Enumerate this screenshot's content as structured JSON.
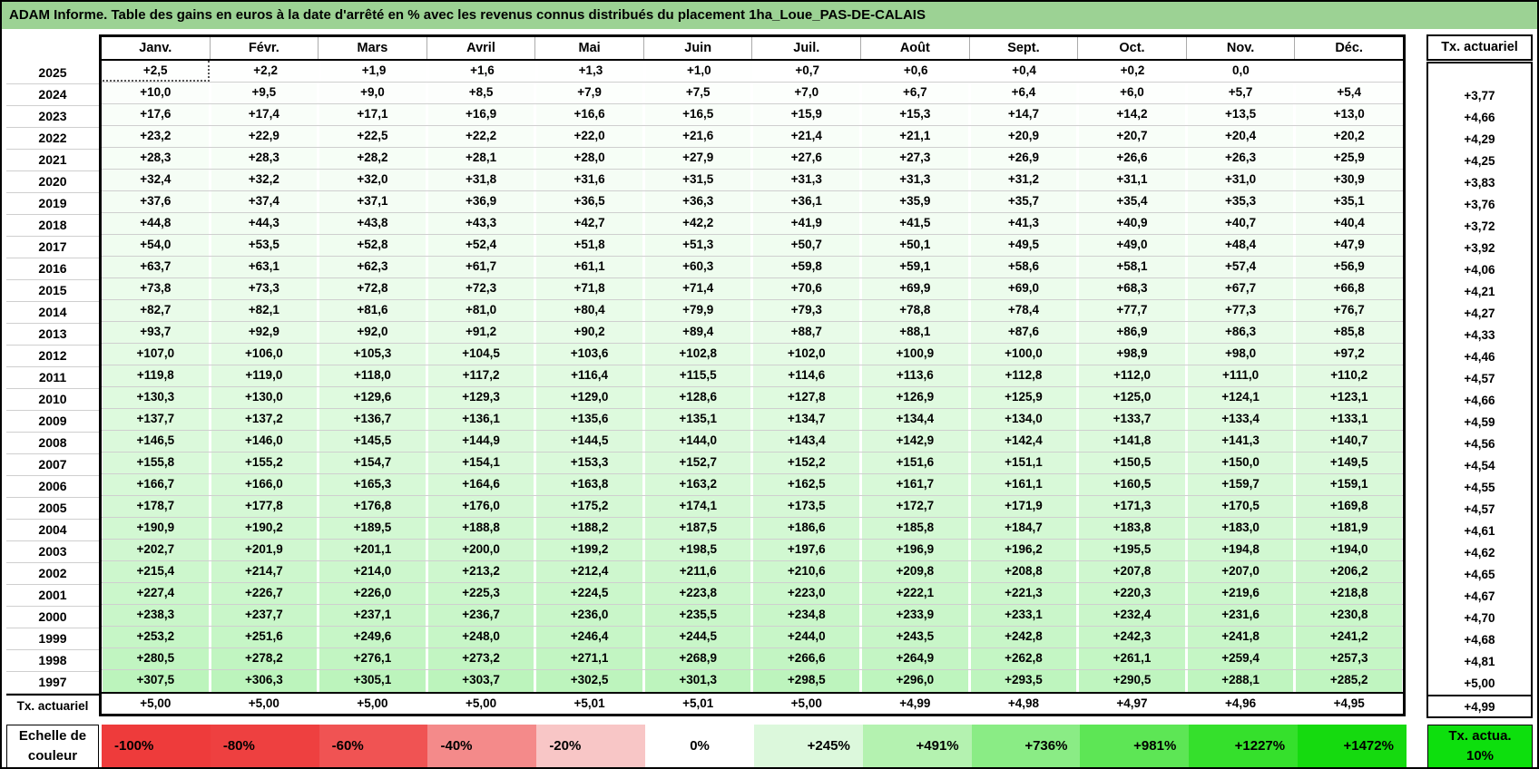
{
  "title": "ADAM Informe. Table des gains en euros à la date d'arrêté en % avec les revenus connus distribués du placement 1ha_Loue_PAS-DE-CALAIS",
  "colors": {
    "title_bg": "#9cd294",
    "grid_line": "#cfcfcf",
    "gain_full_green": "#00d600",
    "selection_dots": "#555555"
  },
  "table": {
    "month_headers": [
      "Janv.",
      "Févr.",
      "Mars",
      "Avril",
      "Mai",
      "Juin",
      "Juil.",
      "Août",
      "Sept.",
      "Oct.",
      "Nov.",
      "Déc."
    ],
    "tx_column_header": "Tx. actuariel",
    "tx_row_label": "Tx. actuariel",
    "selected_cell": {
      "year": "2025",
      "month": "Janv."
    },
    "rows": [
      {
        "year": "2025",
        "values": [
          "+2,5",
          "+2,2",
          "+1,9",
          "+1,6",
          "+1,3",
          "+1,0",
          "+0,7",
          "+0,6",
          "+0,4",
          "+0,2",
          "0,0",
          ""
        ],
        "tx": ""
      },
      {
        "year": "2024",
        "values": [
          "+10,0",
          "+9,5",
          "+9,0",
          "+8,5",
          "+7,9",
          "+7,5",
          "+7,0",
          "+6,7",
          "+6,4",
          "+6,0",
          "+5,7",
          "+5,4"
        ],
        "tx": "+3,77"
      },
      {
        "year": "2023",
        "values": [
          "+17,6",
          "+17,4",
          "+17,1",
          "+16,9",
          "+16,6",
          "+16,5",
          "+15,9",
          "+15,3",
          "+14,7",
          "+14,2",
          "+13,5",
          "+13,0"
        ],
        "tx": "+4,66"
      },
      {
        "year": "2022",
        "values": [
          "+23,2",
          "+22,9",
          "+22,5",
          "+22,2",
          "+22,0",
          "+21,6",
          "+21,4",
          "+21,1",
          "+20,9",
          "+20,7",
          "+20,4",
          "+20,2"
        ],
        "tx": "+4,29"
      },
      {
        "year": "2021",
        "values": [
          "+28,3",
          "+28,3",
          "+28,2",
          "+28,1",
          "+28,0",
          "+27,9",
          "+27,6",
          "+27,3",
          "+26,9",
          "+26,6",
          "+26,3",
          "+25,9"
        ],
        "tx": "+4,25"
      },
      {
        "year": "2020",
        "values": [
          "+32,4",
          "+32,2",
          "+32,0",
          "+31,8",
          "+31,6",
          "+31,5",
          "+31,3",
          "+31,3",
          "+31,2",
          "+31,1",
          "+31,0",
          "+30,9"
        ],
        "tx": "+3,83"
      },
      {
        "year": "2019",
        "values": [
          "+37,6",
          "+37,4",
          "+37,1",
          "+36,9",
          "+36,5",
          "+36,3",
          "+36,1",
          "+35,9",
          "+35,7",
          "+35,4",
          "+35,3",
          "+35,1"
        ],
        "tx": "+3,76"
      },
      {
        "year": "2018",
        "values": [
          "+44,8",
          "+44,3",
          "+43,8",
          "+43,3",
          "+42,7",
          "+42,2",
          "+41,9",
          "+41,5",
          "+41,3",
          "+40,9",
          "+40,7",
          "+40,4"
        ],
        "tx": "+3,72"
      },
      {
        "year": "2017",
        "values": [
          "+54,0",
          "+53,5",
          "+52,8",
          "+52,4",
          "+51,8",
          "+51,3",
          "+50,7",
          "+50,1",
          "+49,5",
          "+49,0",
          "+48,4",
          "+47,9"
        ],
        "tx": "+3,92"
      },
      {
        "year": "2016",
        "values": [
          "+63,7",
          "+63,1",
          "+62,3",
          "+61,7",
          "+61,1",
          "+60,3",
          "+59,8",
          "+59,1",
          "+58,6",
          "+58,1",
          "+57,4",
          "+56,9"
        ],
        "tx": "+4,06"
      },
      {
        "year": "2015",
        "values": [
          "+73,8",
          "+73,3",
          "+72,8",
          "+72,3",
          "+71,8",
          "+71,4",
          "+70,6",
          "+69,9",
          "+69,0",
          "+68,3",
          "+67,7",
          "+66,8"
        ],
        "tx": "+4,21"
      },
      {
        "year": "2014",
        "values": [
          "+82,7",
          "+82,1",
          "+81,6",
          "+81,0",
          "+80,4",
          "+79,9",
          "+79,3",
          "+78,8",
          "+78,4",
          "+77,7",
          "+77,3",
          "+76,7"
        ],
        "tx": "+4,27"
      },
      {
        "year": "2013",
        "values": [
          "+93,7",
          "+92,9",
          "+92,0",
          "+91,2",
          "+90,2",
          "+89,4",
          "+88,7",
          "+88,1",
          "+87,6",
          "+86,9",
          "+86,3",
          "+85,8"
        ],
        "tx": "+4,33"
      },
      {
        "year": "2012",
        "values": [
          "+107,0",
          "+106,0",
          "+105,3",
          "+104,5",
          "+103,6",
          "+102,8",
          "+102,0",
          "+100,9",
          "+100,0",
          "+98,9",
          "+98,0",
          "+97,2"
        ],
        "tx": "+4,46"
      },
      {
        "year": "2011",
        "values": [
          "+119,8",
          "+119,0",
          "+118,0",
          "+117,2",
          "+116,4",
          "+115,5",
          "+114,6",
          "+113,6",
          "+112,8",
          "+112,0",
          "+111,0",
          "+110,2"
        ],
        "tx": "+4,57"
      },
      {
        "year": "2010",
        "values": [
          "+130,3",
          "+130,0",
          "+129,6",
          "+129,3",
          "+129,0",
          "+128,6",
          "+127,8",
          "+126,9",
          "+125,9",
          "+125,0",
          "+124,1",
          "+123,1"
        ],
        "tx": "+4,66"
      },
      {
        "year": "2009",
        "values": [
          "+137,7",
          "+137,2",
          "+136,7",
          "+136,1",
          "+135,6",
          "+135,1",
          "+134,7",
          "+134,4",
          "+134,0",
          "+133,7",
          "+133,4",
          "+133,1"
        ],
        "tx": "+4,59"
      },
      {
        "year": "2008",
        "values": [
          "+146,5",
          "+146,0",
          "+145,5",
          "+144,9",
          "+144,5",
          "+144,0",
          "+143,4",
          "+142,9",
          "+142,4",
          "+141,8",
          "+141,3",
          "+140,7"
        ],
        "tx": "+4,56"
      },
      {
        "year": "2007",
        "values": [
          "+155,8",
          "+155,2",
          "+154,7",
          "+154,1",
          "+153,3",
          "+152,7",
          "+152,2",
          "+151,6",
          "+151,1",
          "+150,5",
          "+150,0",
          "+149,5"
        ],
        "tx": "+4,54"
      },
      {
        "year": "2006",
        "values": [
          "+166,7",
          "+166,0",
          "+165,3",
          "+164,6",
          "+163,8",
          "+163,2",
          "+162,5",
          "+161,7",
          "+161,1",
          "+160,5",
          "+159,7",
          "+159,1"
        ],
        "tx": "+4,55"
      },
      {
        "year": "2005",
        "values": [
          "+178,7",
          "+177,8",
          "+176,8",
          "+176,0",
          "+175,2",
          "+174,1",
          "+173,5",
          "+172,7",
          "+171,9",
          "+171,3",
          "+170,5",
          "+169,8"
        ],
        "tx": "+4,57"
      },
      {
        "year": "2004",
        "values": [
          "+190,9",
          "+190,2",
          "+189,5",
          "+188,8",
          "+188,2",
          "+187,5",
          "+186,6",
          "+185,8",
          "+184,7",
          "+183,8",
          "+183,0",
          "+181,9"
        ],
        "tx": "+4,61"
      },
      {
        "year": "2003",
        "values": [
          "+202,7",
          "+201,9",
          "+201,1",
          "+200,0",
          "+199,2",
          "+198,5",
          "+197,6",
          "+196,9",
          "+196,2",
          "+195,5",
          "+194,8",
          "+194,0"
        ],
        "tx": "+4,62"
      },
      {
        "year": "2002",
        "values": [
          "+215,4",
          "+214,7",
          "+214,0",
          "+213,2",
          "+212,4",
          "+211,6",
          "+210,6",
          "+209,8",
          "+208,8",
          "+207,8",
          "+207,0",
          "+206,2"
        ],
        "tx": "+4,65"
      },
      {
        "year": "2001",
        "values": [
          "+227,4",
          "+226,7",
          "+226,0",
          "+225,3",
          "+224,5",
          "+223,8",
          "+223,0",
          "+222,1",
          "+221,3",
          "+220,3",
          "+219,6",
          "+218,8"
        ],
        "tx": "+4,67"
      },
      {
        "year": "2000",
        "values": [
          "+238,3",
          "+237,7",
          "+237,1",
          "+236,7",
          "+236,0",
          "+235,5",
          "+234,8",
          "+233,9",
          "+233,1",
          "+232,4",
          "+231,6",
          "+230,8"
        ],
        "tx": "+4,70"
      },
      {
        "year": "1999",
        "values": [
          "+253,2",
          "+251,6",
          "+249,6",
          "+248,0",
          "+246,4",
          "+244,5",
          "+244,0",
          "+243,5",
          "+242,8",
          "+242,3",
          "+241,8",
          "+241,2"
        ],
        "tx": "+4,68"
      },
      {
        "year": "1998",
        "values": [
          "+280,5",
          "+278,2",
          "+276,1",
          "+273,2",
          "+271,1",
          "+268,9",
          "+266,6",
          "+264,9",
          "+262,8",
          "+261,1",
          "+259,4",
          "+257,3"
        ],
        "tx": "+4,81"
      },
      {
        "year": "1997",
        "values": [
          "+307,5",
          "+306,3",
          "+305,1",
          "+303,7",
          "+302,5",
          "+301,3",
          "+298,5",
          "+296,0",
          "+293,5",
          "+290,5",
          "+288,1",
          "+285,2"
        ],
        "tx": "+5,00"
      }
    ],
    "tx_row": {
      "values": [
        "+5,00",
        "+5,00",
        "+5,00",
        "+5,00",
        "+5,01",
        "+5,01",
        "+5,00",
        "+4,99",
        "+4,98",
        "+4,97",
        "+4,96",
        "+4,95"
      ],
      "tx": "+4,99"
    }
  },
  "color_scale": {
    "label": "Echelle de couleur",
    "max_value_pct": 1472,
    "cells": [
      {
        "label": "-100%",
        "color": "#ee3b3b"
      },
      {
        "label": "-80%",
        "color": "#ee4040"
      },
      {
        "label": "-60%",
        "color": "#f05353"
      },
      {
        "label": "-40%",
        "color": "#f48a8a"
      },
      {
        "label": "-20%",
        "color": "#f8c6c6"
      },
      {
        "label": "0%",
        "color": "#ffffff"
      },
      {
        "label": "+245%",
        "color": "#dcf8dc"
      },
      {
        "label": "+491%",
        "color": "#b4f2b0"
      },
      {
        "label": "+736%",
        "color": "#8aec85"
      },
      {
        "label": "+981%",
        "color": "#5de655"
      },
      {
        "label": "+1227%",
        "color": "#35e02c"
      },
      {
        "label": "+1472%",
        "color": "#15da0f"
      }
    ],
    "tx_box_label": "Tx. actua. 10%",
    "tx_box_color": "#0ddf0d"
  }
}
